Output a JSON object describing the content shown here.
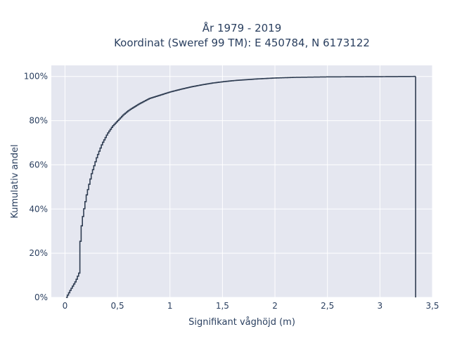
{
  "chart_data": {
    "type": "line",
    "line_shape": "step",
    "title_lines": [
      "År 1979 - 2019",
      "Koordinat (Sweref 99 TM): E 450784, N 6173122"
    ],
    "xlabel": "Signifikant våghöjd (m)",
    "ylabel": "Kumulativ andel",
    "xlim": [
      -0.13,
      3.5
    ],
    "ylim": [
      0,
      1.05
    ],
    "x_ticks": [
      0,
      0.5,
      1,
      1.5,
      2,
      2.5,
      3,
      3.5
    ],
    "x_tick_labels": [
      "0",
      "0,5",
      "1",
      "1,5",
      "2",
      "2,5",
      "3",
      "3,5"
    ],
    "y_ticks": [
      0,
      0.2,
      0.4,
      0.6,
      0.8,
      1.0
    ],
    "y_tick_labels": [
      "0%",
      "20%",
      "40%",
      "60%",
      "80%",
      "100%"
    ],
    "grid": true,
    "colors": {
      "plot_bg": "#e5e7f0",
      "grid": "#ffffff",
      "line": "#2f3d52",
      "text": "#2a3f5f"
    },
    "series": [
      {
        "x": [
          0.01,
          0.05,
          0.1,
          0.13,
          0.14,
          0.15,
          0.17,
          0.2,
          0.25,
          0.3,
          0.35,
          0.4,
          0.45,
          0.5,
          0.55,
          0.6,
          0.7,
          0.8,
          0.9,
          1.0,
          1.1,
          1.2,
          1.3,
          1.4,
          1.5,
          1.6,
          1.8,
          2.0,
          2.2,
          2.5,
          3.0,
          3.34,
          3.34
        ],
        "y": [
          0.0,
          0.035,
          0.075,
          0.11,
          0.24,
          0.31,
          0.38,
          0.46,
          0.56,
          0.635,
          0.695,
          0.74,
          0.775,
          0.8,
          0.825,
          0.845,
          0.875,
          0.9,
          0.915,
          0.93,
          0.942,
          0.953,
          0.962,
          0.97,
          0.976,
          0.981,
          0.988,
          0.993,
          0.996,
          0.998,
          0.999,
          1.0,
          0.0
        ]
      }
    ]
  }
}
